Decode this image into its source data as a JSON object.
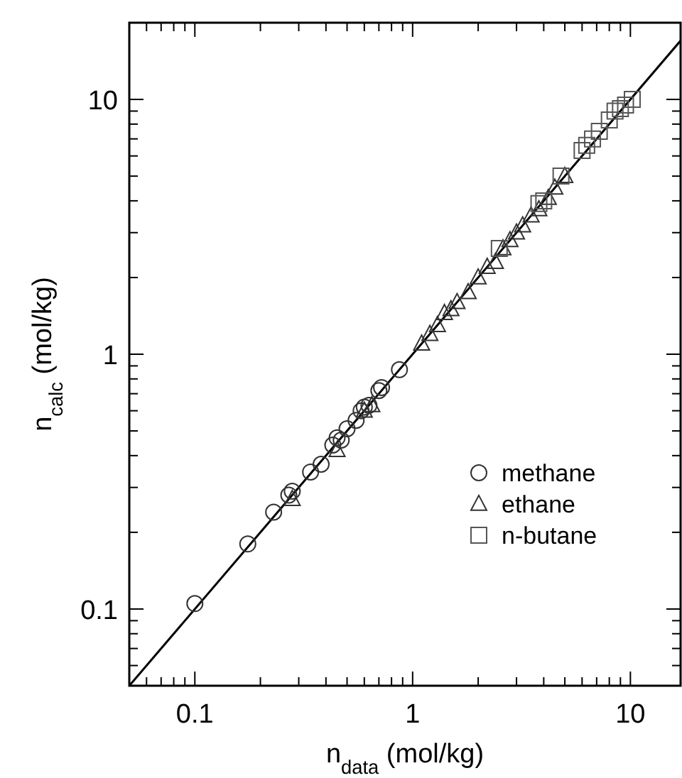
{
  "chart_data": {
    "type": "scatter",
    "xlabel": "n$_{data}$ (mol/kg)",
    "ylabel": "n$_{calc}$ (mol/kg)",
    "log": "xy",
    "grid": false,
    "legend": "bottom right",
    "xlim": [
      0.05,
      17
    ],
    "ylim": [
      0.05,
      20
    ],
    "xticks": [
      {
        "value": 0.05,
        "label": null
      },
      {
        "value": 0.06,
        "label": null
      },
      {
        "value": 0.07,
        "label": null
      },
      {
        "value": 0.08,
        "label": null
      },
      {
        "value": 0.09,
        "label": null
      },
      0.1,
      {
        "value": 0.2,
        "label": null
      },
      {
        "value": 0.3,
        "label": null
      },
      {
        "value": 0.4,
        "label": null
      },
      {
        "value": 0.5,
        "label": null
      },
      {
        "value": 0.6,
        "label": null
      },
      {
        "value": 0.7,
        "label": null
      },
      {
        "value": 0.8,
        "label": null
      },
      {
        "value": 0.9,
        "label": null
      },
      1,
      {
        "value": 2,
        "label": null
      },
      {
        "value": 3,
        "label": null
      },
      {
        "value": 4,
        "label": null
      },
      {
        "value": 5,
        "label": null
      },
      {
        "value": 6,
        "label": null
      },
      {
        "value": 7,
        "label": null
      },
      {
        "value": 8,
        "label": null
      },
      {
        "value": 9,
        "label": null
      },
      10
    ],
    "yticks": [
      {
        "value": 0.05,
        "label": null
      },
      {
        "value": 0.06,
        "label": null
      },
      {
        "value": 0.07,
        "label": null
      },
      {
        "value": 0.08,
        "label": null
      },
      {
        "value": 0.09,
        "label": null
      },
      0.1,
      {
        "value": 0.2,
        "label": null
      },
      {
        "value": 0.3,
        "label": null
      },
      {
        "value": 0.4,
        "label": null
      },
      {
        "value": 0.5,
        "label": null
      },
      {
        "value": 0.6,
        "label": null
      },
      {
        "value": 0.7,
        "label": null
      },
      {
        "value": 0.8,
        "label": null
      },
      {
        "value": 0.9,
        "label": null
      },
      1,
      {
        "value": 2,
        "label": null
      },
      {
        "value": 3,
        "label": null
      },
      {
        "value": 4,
        "label": null
      },
      {
        "value": 5,
        "label": null
      },
      {
        "value": 6,
        "label": null
      },
      {
        "value": 7,
        "label": null
      },
      {
        "value": 8,
        "label": null
      },
      {
        "value": 9,
        "label": null
      },
      10,
      {
        "value": 20,
        "label": null
      }
    ],
    "series": [
      {
        "type": "line",
        "color": "#000000",
        "marker": "none",
        "line_style": "solid",
        "x": [
          0.05,
          17
        ],
        "values": [
          0.05,
          17
        ]
      },
      {
        "name": "methane",
        "color": "#333333",
        "marker": "circle",
        "x": [
          0.1,
          0.175,
          0.23,
          0.27,
          0.28,
          0.34,
          0.38,
          0.43,
          0.45,
          0.47,
          0.5,
          0.55,
          0.58,
          0.6,
          0.63,
          0.7,
          0.72,
          0.87
        ],
        "values": [
          0.105,
          0.18,
          0.24,
          0.28,
          0.29,
          0.345,
          0.37,
          0.44,
          0.47,
          0.46,
          0.51,
          0.55,
          0.6,
          0.62,
          0.63,
          0.72,
          0.74,
          0.87
        ]
      },
      {
        "name": "ethane",
        "color": "#333333",
        "marker": "triangle",
        "x": [
          0.28,
          0.45,
          0.6,
          0.65,
          1.1,
          1.2,
          1.3,
          1.4,
          1.5,
          1.6,
          1.8,
          2.0,
          2.2,
          2.4,
          2.6,
          2.8,
          3.0,
          3.2,
          3.5,
          3.8,
          4.2,
          4.5,
          5.0
        ],
        "values": [
          0.27,
          0.42,
          0.6,
          0.63,
          1.1,
          1.2,
          1.3,
          1.45,
          1.5,
          1.6,
          1.75,
          2.0,
          2.2,
          2.3,
          2.6,
          2.8,
          3.0,
          3.2,
          3.5,
          3.7,
          4.1,
          4.5,
          5.0
        ]
      },
      {
        "name": "n-butane",
        "color": "#555555",
        "marker": "square",
        "x": [
          2.5,
          3.8,
          4.0,
          4.8,
          6.0,
          6.3,
          6.7,
          7.2,
          8.0,
          8.5,
          9.0,
          9.5,
          10.2
        ],
        "values": [
          2.6,
          3.9,
          4.0,
          5.0,
          6.3,
          6.6,
          7.0,
          7.5,
          8.3,
          9.0,
          9.2,
          9.5,
          10.0
        ]
      }
    ]
  }
}
